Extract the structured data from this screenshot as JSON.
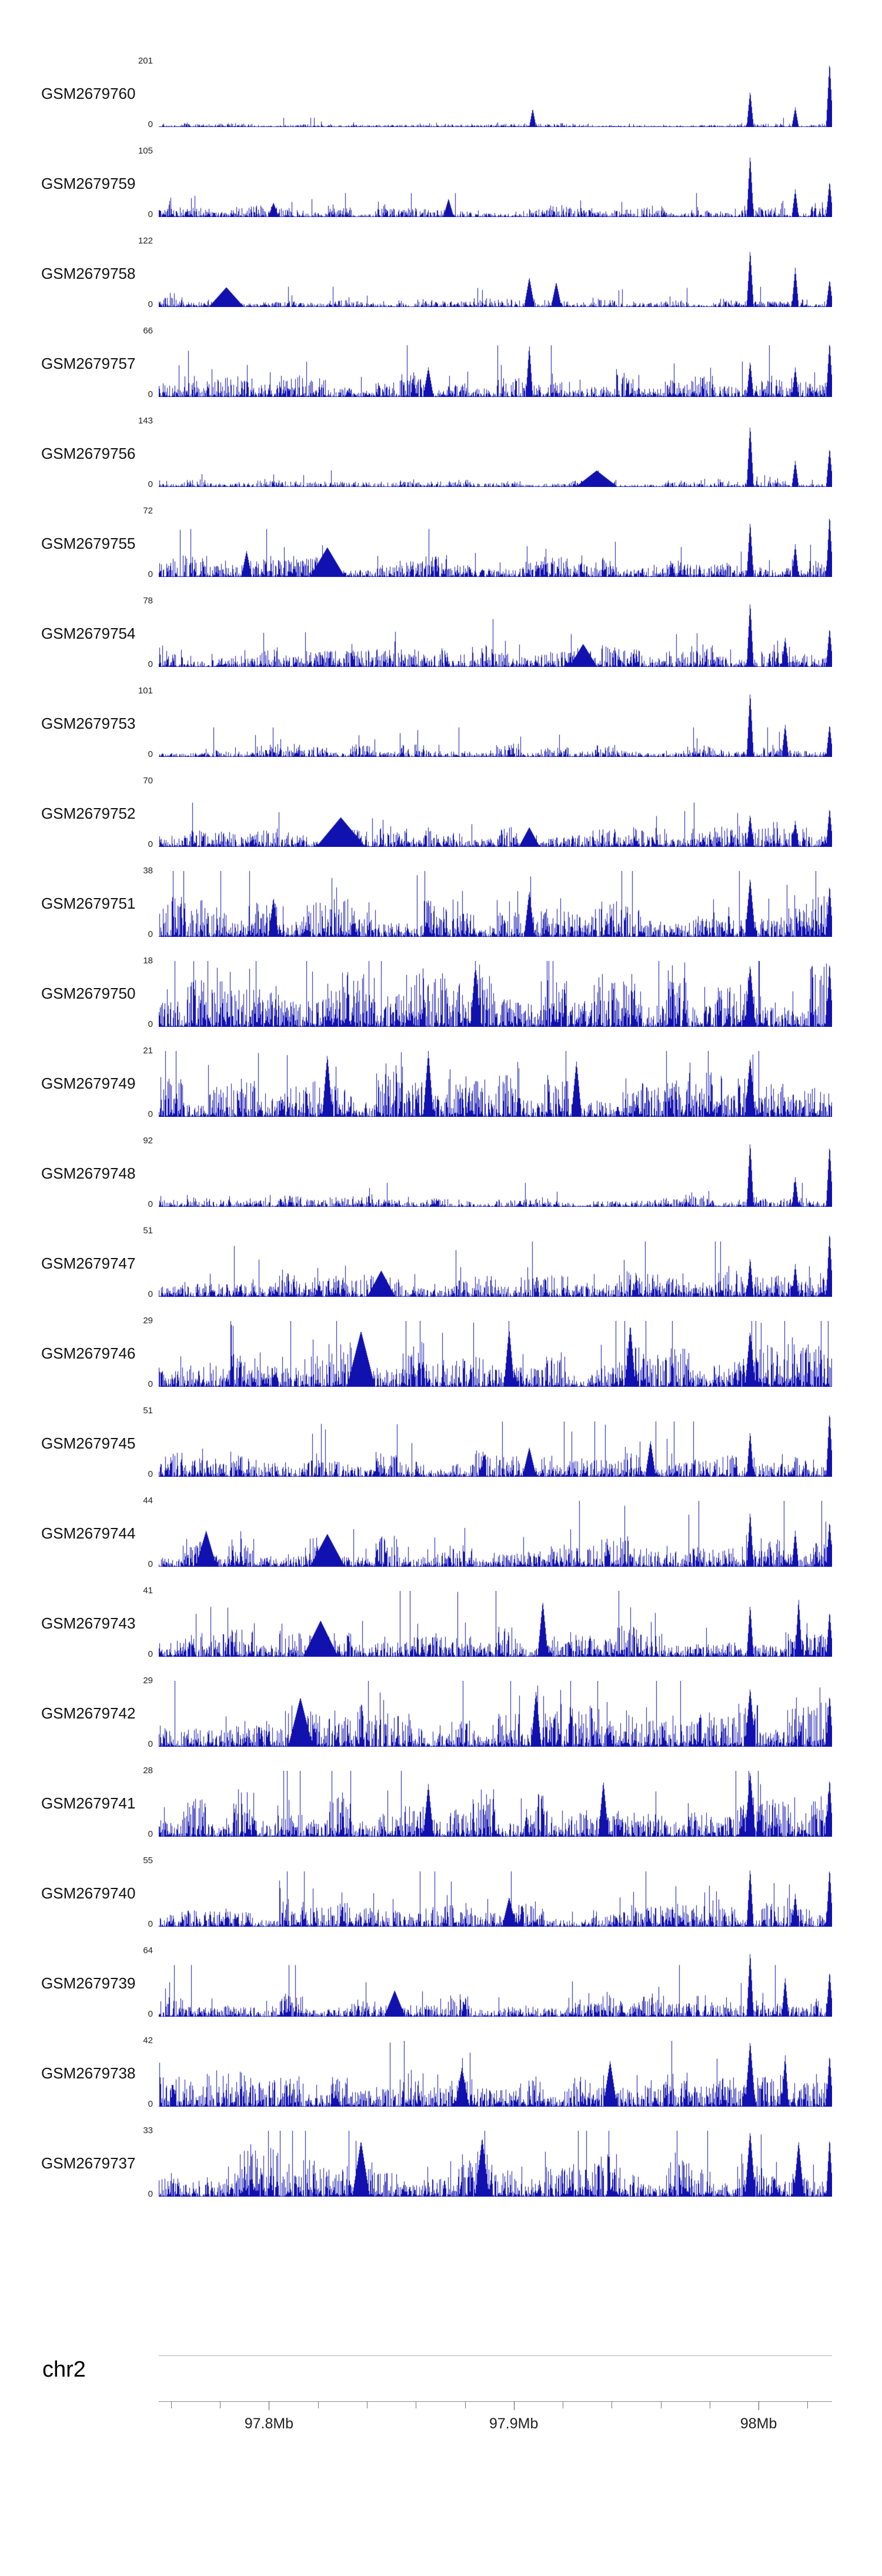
{
  "chart_data": {
    "type": "area",
    "track_color": "#1111b0",
    "y_base_label": "0",
    "peaks_format": "x_fraction,height_fraction,halfwidth_px",
    "tracks": [
      {
        "name": "GSM2679760",
        "ymax": 201,
        "noise": 0.05,
        "seed": 1,
        "peaks": [
          [
            0.555,
            0.28,
            2
          ],
          [
            0.878,
            0.55,
            2
          ],
          [
            0.945,
            0.3,
            2
          ],
          [
            0.996,
            1.0,
            2
          ]
        ]
      },
      {
        "name": "GSM2679759",
        "ymax": 105,
        "noise": 0.13,
        "seed": 2,
        "peaks": [
          [
            0.17,
            0.22,
            3
          ],
          [
            0.43,
            0.28,
            3
          ],
          [
            0.878,
            0.95,
            2
          ],
          [
            0.945,
            0.42,
            2
          ],
          [
            0.996,
            0.55,
            2
          ]
        ]
      },
      {
        "name": "GSM2679758",
        "ymax": 122,
        "noise": 0.11,
        "seed": 3,
        "peaks": [
          [
            0.1,
            0.3,
            10
          ],
          [
            0.55,
            0.45,
            3
          ],
          [
            0.59,
            0.38,
            3
          ],
          [
            0.878,
            0.88,
            2
          ],
          [
            0.945,
            0.6,
            2
          ],
          [
            0.996,
            0.42,
            2
          ]
        ]
      },
      {
        "name": "GSM2679757",
        "ymax": 66,
        "noise": 0.28,
        "seed": 4,
        "peaks": [
          [
            0.4,
            0.45,
            3
          ],
          [
            0.55,
            0.8,
            2
          ],
          [
            0.878,
            0.55,
            2
          ],
          [
            0.945,
            0.45,
            2
          ],
          [
            0.996,
            0.85,
            2
          ]
        ]
      },
      {
        "name": "GSM2679756",
        "ymax": 143,
        "noise": 0.09,
        "seed": 5,
        "peaks": [
          [
            0.65,
            0.25,
            12
          ],
          [
            0.878,
            0.95,
            2
          ],
          [
            0.945,
            0.4,
            2
          ],
          [
            0.996,
            0.6,
            2
          ]
        ]
      },
      {
        "name": "GSM2679755",
        "ymax": 72,
        "noise": 0.26,
        "seed": 6,
        "peaks": [
          [
            0.13,
            0.4,
            3
          ],
          [
            0.25,
            0.45,
            10
          ],
          [
            0.878,
            0.85,
            2
          ],
          [
            0.945,
            0.5,
            2
          ],
          [
            0.996,
            0.95,
            2
          ]
        ]
      },
      {
        "name": "GSM2679754",
        "ymax": 78,
        "noise": 0.26,
        "seed": 7,
        "peaks": [
          [
            0.63,
            0.35,
            8
          ],
          [
            0.878,
            1.0,
            2
          ],
          [
            0.93,
            0.45,
            2
          ],
          [
            0.996,
            0.6,
            2
          ]
        ]
      },
      {
        "name": "GSM2679753",
        "ymax": 101,
        "noise": 0.16,
        "seed": 8,
        "peaks": [
          [
            0.878,
            1.0,
            2
          ],
          [
            0.93,
            0.5,
            2
          ],
          [
            0.996,
            0.5,
            2
          ]
        ]
      },
      {
        "name": "GSM2679752",
        "ymax": 70,
        "noise": 0.24,
        "seed": 9,
        "peaks": [
          [
            0.27,
            0.45,
            14
          ],
          [
            0.55,
            0.3,
            6
          ],
          [
            0.878,
            0.5,
            2
          ],
          [
            0.945,
            0.4,
            2
          ],
          [
            0.996,
            0.6,
            2
          ]
        ]
      },
      {
        "name": "GSM2679751",
        "ymax": 38,
        "noise": 0.45,
        "seed": 10,
        "peaks": [
          [
            0.17,
            0.6,
            3
          ],
          [
            0.55,
            0.7,
            3
          ],
          [
            0.878,
            0.9,
            3
          ],
          [
            0.996,
            0.8,
            2
          ]
        ]
      },
      {
        "name": "GSM2679750",
        "ymax": 18,
        "noise": 0.68,
        "seed": 11,
        "peaks": [
          [
            0.47,
            0.95,
            3
          ],
          [
            0.878,
            0.95,
            3
          ],
          [
            0.996,
            1.0,
            2
          ]
        ]
      },
      {
        "name": "GSM2679749",
        "ymax": 21,
        "noise": 0.62,
        "seed": 12,
        "peaks": [
          [
            0.25,
            0.95,
            3
          ],
          [
            0.4,
            1.0,
            3
          ],
          [
            0.62,
            0.85,
            3
          ],
          [
            0.878,
            0.9,
            3
          ]
        ]
      },
      {
        "name": "GSM2679748",
        "ymax": 92,
        "noise": 0.13,
        "seed": 13,
        "peaks": [
          [
            0.878,
            1.0,
            2
          ],
          [
            0.945,
            0.45,
            2
          ],
          [
            0.996,
            0.95,
            2
          ]
        ]
      },
      {
        "name": "GSM2679747",
        "ymax": 51,
        "noise": 0.3,
        "seed": 14,
        "peaks": [
          [
            0.33,
            0.4,
            8
          ],
          [
            0.878,
            0.6,
            2
          ],
          [
            0.945,
            0.5,
            2
          ],
          [
            0.996,
            1.0,
            2
          ]
        ]
      },
      {
        "name": "GSM2679746",
        "ymax": 29,
        "noise": 0.52,
        "seed": 15,
        "peaks": [
          [
            0.3,
            0.85,
            8
          ],
          [
            0.52,
            0.9,
            3
          ],
          [
            0.7,
            0.95,
            3
          ],
          [
            0.878,
            0.85,
            3
          ]
        ]
      },
      {
        "name": "GSM2679745",
        "ymax": 51,
        "noise": 0.3,
        "seed": 16,
        "peaks": [
          [
            0.55,
            0.45,
            4
          ],
          [
            0.73,
            0.55,
            3
          ],
          [
            0.878,
            0.7,
            2
          ],
          [
            0.996,
            1.0,
            2
          ]
        ]
      },
      {
        "name": "GSM2679744",
        "ymax": 44,
        "noise": 0.36,
        "seed": 17,
        "peaks": [
          [
            0.07,
            0.55,
            6
          ],
          [
            0.25,
            0.5,
            10
          ],
          [
            0.878,
            0.85,
            2
          ],
          [
            0.945,
            0.55,
            2
          ],
          [
            0.996,
            0.7,
            2
          ]
        ]
      },
      {
        "name": "GSM2679743",
        "ymax": 41,
        "noise": 0.36,
        "seed": 18,
        "peaks": [
          [
            0.24,
            0.55,
            10
          ],
          [
            0.57,
            0.85,
            3
          ],
          [
            0.878,
            0.8,
            2
          ],
          [
            0.95,
            0.9,
            2
          ],
          [
            0.996,
            0.7,
            2
          ]
        ]
      },
      {
        "name": "GSM2679742",
        "ymax": 29,
        "noise": 0.5,
        "seed": 19,
        "peaks": [
          [
            0.21,
            0.75,
            7
          ],
          [
            0.56,
            0.85,
            3
          ],
          [
            0.878,
            0.9,
            3
          ],
          [
            0.996,
            0.8,
            2
          ]
        ]
      },
      {
        "name": "GSM2679741",
        "ymax": 28,
        "noise": 0.55,
        "seed": 20,
        "peaks": [
          [
            0.4,
            0.8,
            3
          ],
          [
            0.66,
            0.85,
            3
          ],
          [
            0.878,
            1.0,
            3
          ],
          [
            0.996,
            0.9,
            2
          ]
        ]
      },
      {
        "name": "GSM2679740",
        "ymax": 55,
        "noise": 0.3,
        "seed": 21,
        "peaks": [
          [
            0.52,
            0.45,
            4
          ],
          [
            0.878,
            0.9,
            2
          ],
          [
            0.945,
            0.5,
            2
          ],
          [
            0.996,
            0.9,
            2
          ]
        ]
      },
      {
        "name": "GSM2679739",
        "ymax": 64,
        "noise": 0.28,
        "seed": 22,
        "peaks": [
          [
            0.35,
            0.4,
            6
          ],
          [
            0.878,
            1.0,
            2
          ],
          [
            0.93,
            0.6,
            2
          ],
          [
            0.996,
            0.7,
            2
          ]
        ]
      },
      {
        "name": "GSM2679738",
        "ymax": 42,
        "noise": 0.4,
        "seed": 23,
        "peaks": [
          [
            0.45,
            0.6,
            4
          ],
          [
            0.67,
            0.7,
            4
          ],
          [
            0.878,
            1.0,
            3
          ],
          [
            0.93,
            0.8,
            2
          ],
          [
            0.996,
            0.8,
            2
          ]
        ]
      },
      {
        "name": "GSM2679737",
        "ymax": 33,
        "noise": 0.55,
        "seed": 24,
        "peaks": [
          [
            0.3,
            0.85,
            5
          ],
          [
            0.48,
            0.9,
            4
          ],
          [
            0.878,
            1.0,
            3
          ],
          [
            0.95,
            0.85,
            3
          ],
          [
            0.996,
            0.9,
            2
          ]
        ]
      }
    ],
    "ruler": {
      "chromosome": "chr2",
      "unit": "Mb",
      "start": 97.755,
      "end": 98.03,
      "ticks": [
        {
          "v": 97.76
        },
        {
          "v": 97.78
        },
        {
          "v": 97.8,
          "label": "97.8Mb"
        },
        {
          "v": 97.82
        },
        {
          "v": 97.84
        },
        {
          "v": 97.86
        },
        {
          "v": 97.88
        },
        {
          "v": 97.9,
          "label": "97.9Mb"
        },
        {
          "v": 97.92
        },
        {
          "v": 97.94
        },
        {
          "v": 97.96
        },
        {
          "v": 97.98
        },
        {
          "v": 98.0,
          "label": "98Mb"
        },
        {
          "v": 98.02
        }
      ]
    }
  }
}
